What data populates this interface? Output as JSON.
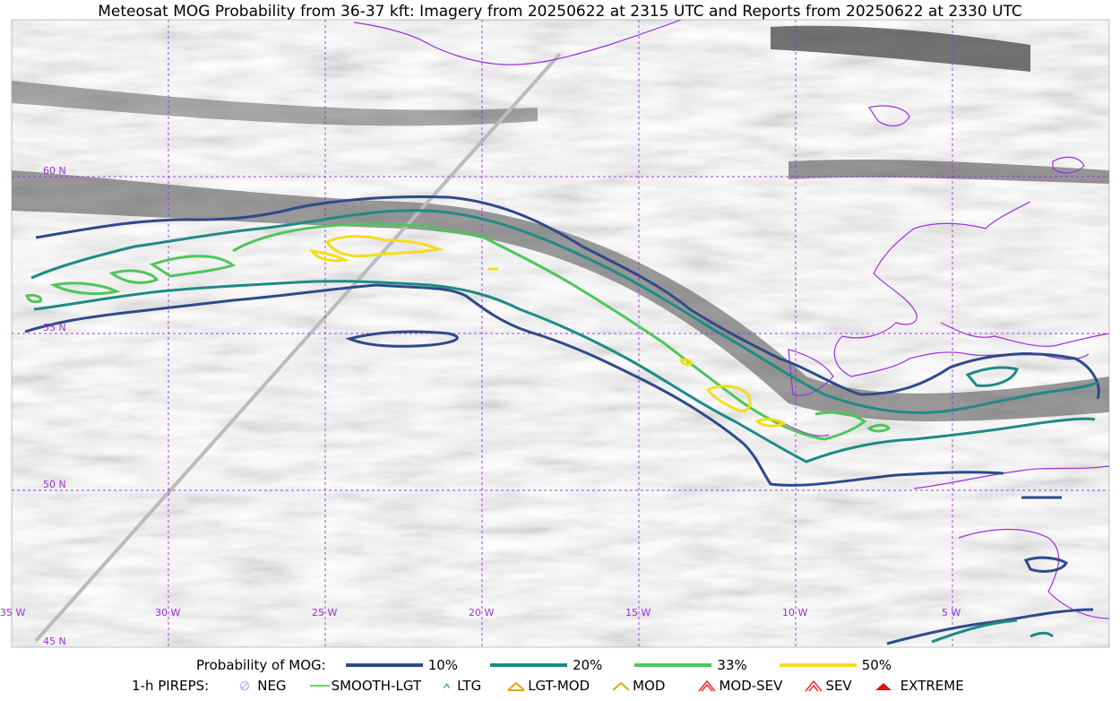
{
  "title": "Meteosat MOG Probability from 36-37 kft: Imagery from 20250622 at 2315 UTC and Reports from 20250622 at 2330 UTC",
  "map": {
    "lat_labels": [
      "60 N",
      "55 N",
      "50 N",
      "45 N"
    ],
    "lon_labels": [
      "35 W",
      "30 W",
      "25 W",
      "20 W",
      "15 W",
      "10 W",
      "5 W"
    ],
    "gridline_color": "#9b30d9",
    "coastline_color": "#9b30d9",
    "background": "grayscale satellite imagery"
  },
  "legend_prob": {
    "label": "Probability of MOG:",
    "items": [
      {
        "label": "10%",
        "color": "#2e4a8a"
      },
      {
        "label": "20%",
        "color": "#1f8a84"
      },
      {
        "label": "33%",
        "color": "#4fc55a"
      },
      {
        "label": "50%",
        "color": "#f5dc1c"
      }
    ]
  },
  "legend_pireps": {
    "label": "1-h PIREPS:",
    "items": [
      {
        "label": "NEG",
        "color": "#b8b8ff",
        "icon": "neg-circle-icon"
      },
      {
        "label": "SMOOTH-LGT",
        "color": "#33cc33",
        "icon": "smooth-line-icon"
      },
      {
        "label": "LTG",
        "color": "#22bb22",
        "icon": "caret-icon"
      },
      {
        "label": "LGT-MOD",
        "color": "#e8a317",
        "icon": "lgt-mod-icon"
      },
      {
        "label": "MOD",
        "color": "#e8a317",
        "icon": "mod-caret-icon"
      },
      {
        "label": "MOD-SEV",
        "color": "#e33",
        "icon": "mod-sev-icon"
      },
      {
        "label": "SEV",
        "color": "#e33",
        "icon": "sev-icon"
      },
      {
        "label": "EXTREME",
        "color": "#dd1111",
        "icon": "extreme-icon"
      }
    ]
  }
}
